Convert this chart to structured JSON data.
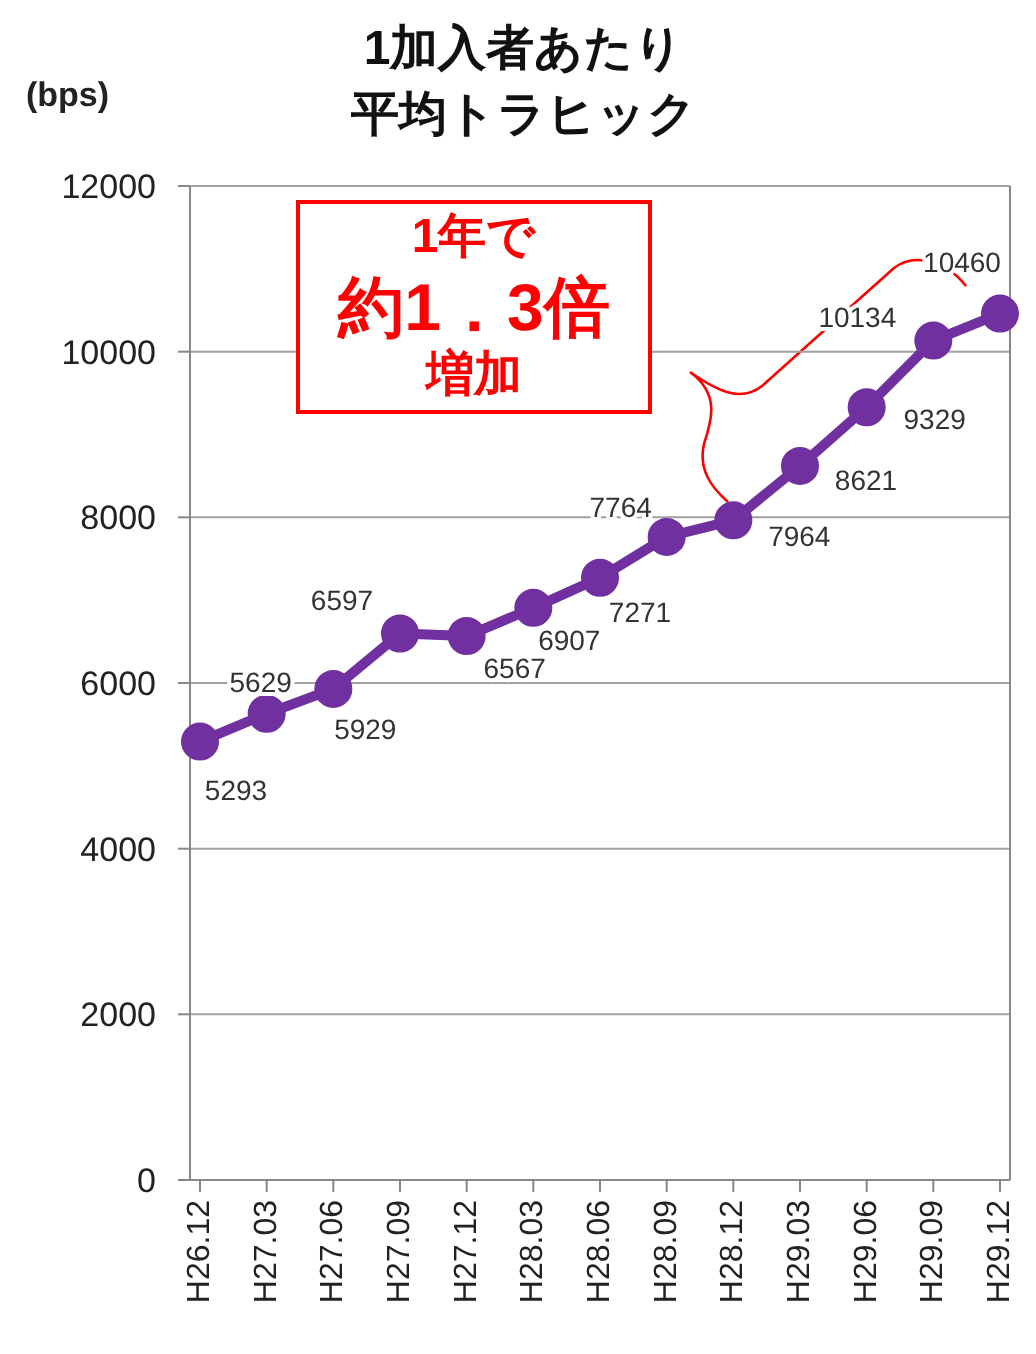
{
  "chart_data": {
    "type": "line",
    "title": "1加入者あたり平均トラヒック",
    "ylabel": "(bps)",
    "categories": [
      "H26.12",
      "H27.03",
      "H27.06",
      "H27.09",
      "H27.12",
      "H28.03",
      "H28.06",
      "H28.09",
      "H28.12",
      "H29.03",
      "H29.06",
      "H29.09",
      "H29.12"
    ],
    "values": [
      5293,
      5629,
      5929,
      6597,
      6567,
      6907,
      7271,
      7764,
      7964,
      8621,
      9329,
      10134,
      10460
    ],
    "color": "#7030a0",
    "ylim": [
      0,
      12000
    ],
    "yticks": [
      0,
      2000,
      4000,
      6000,
      8000,
      10000,
      12000
    ],
    "grid": "y",
    "marker": "circle",
    "line_style": "solid",
    "data_labels": true,
    "annotations": [
      "1年で約1．3倍増加"
    ]
  }
}
